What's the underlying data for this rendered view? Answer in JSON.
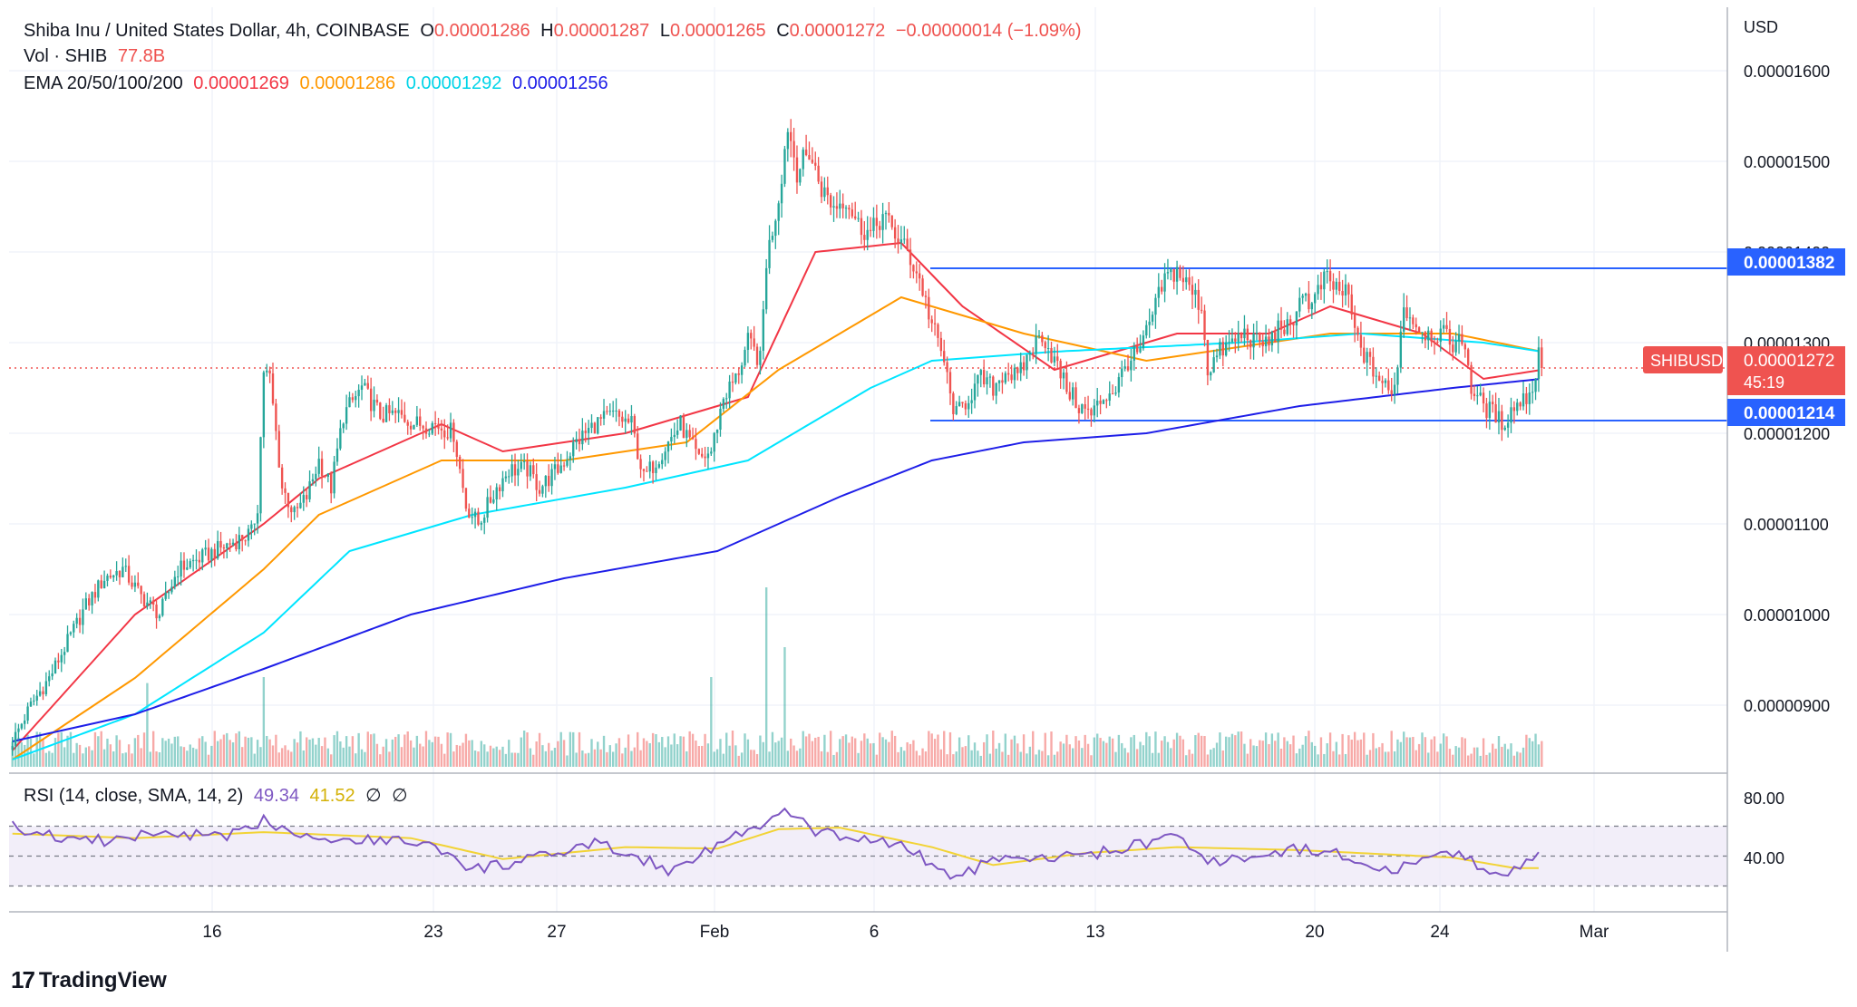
{
  "header": {
    "symbol": "Shiba Inu / United States Dollar, 4h, COINBASE",
    "open_label": "O",
    "open": "0.00001286",
    "high_label": "H",
    "high": "0.00001287",
    "low_label": "L",
    "low": "0.00001265",
    "close_label": "C",
    "close": "0.00001272",
    "change": "−0.00000014 (−1.09%)",
    "volume_label": "Vol · SHIB",
    "volume": "77.8B",
    "ema_label": "EMA 20/50/100/200",
    "ema20": "0.00001269",
    "ema50": "0.00001286",
    "ema100": "0.00001292",
    "ema200": "0.00001256"
  },
  "price_axis": {
    "currency": "USD",
    "ticks": [
      "0.00001600",
      "0.00001500",
      "0.00001400",
      "0.00001300",
      "0.00001200",
      "0.00001100",
      "0.00001000",
      "0.00000900"
    ],
    "resistance_label": "0.00001382",
    "support_label": "0.00001214",
    "ticker_badge": "SHIBUSD",
    "last_price_label": "0.00001272",
    "countdown": "45:19"
  },
  "rsi": {
    "label": "RSI (14, close, SMA, 14, 2)",
    "value": "49.34",
    "sma_value": "41.52",
    "empty_1": "∅",
    "empty_2": "∅",
    "ticks": [
      "80.00",
      "40.00"
    ]
  },
  "time_axis": {
    "ticks": [
      "16",
      "23",
      "27",
      "Feb",
      "6",
      "13",
      "20",
      "24",
      "Mar"
    ]
  },
  "branding": {
    "logo_mark": "17",
    "logo_text": "TradingView"
  },
  "colors": {
    "up": "#26a69a",
    "down": "#ef5350",
    "ema20": "#f23645",
    "ema50": "#ff9800",
    "ema100": "#00e5ff",
    "ema200": "#1e1ee8",
    "level": "#2962ff",
    "rsi": "#7e57c2",
    "rsi_sma": "#f2d335",
    "rsi_band": "#ede7f6"
  },
  "chart_data": {
    "type": "candlestick",
    "title": "Shiba Inu / United States Dollar, 4h, COINBASE",
    "ylabel": "USD",
    "ylim": [
      8.3e-06,
      1.66e-05
    ],
    "x_ticks": [
      "16",
      "23",
      "27",
      "Feb",
      "6",
      "13",
      "20",
      "24",
      "Mar"
    ],
    "horizontal_levels": [
      {
        "value": 1.382e-05,
        "label": "0.00001382"
      },
      {
        "value": 1.214e-05,
        "label": "0.00001214"
      }
    ],
    "last_price": 1.272e-05,
    "candle_close_anchors": [
      [
        0,
        8.6e-06
      ],
      [
        6,
        9e-06
      ],
      [
        12,
        9.3e-06
      ],
      [
        18,
        9.7e-06
      ],
      [
        24,
        1.01e-05
      ],
      [
        30,
        1.04e-05
      ],
      [
        36,
        1.05e-05
      ],
      [
        42,
        1.02e-05
      ],
      [
        48,
        1e-05
      ],
      [
        54,
        1.05e-05
      ],
      [
        60,
        1.06e-05
      ],
      [
        66,
        1.07e-05
      ],
      [
        72,
        1.08e-05
      ],
      [
        78,
        1.09e-05
      ],
      [
        80,
        1.12e-05
      ],
      [
        82,
        1.27e-05
      ],
      [
        84,
        1.26e-05
      ],
      [
        88,
        1.14e-05
      ],
      [
        92,
        1.11e-05
      ],
      [
        96,
        1.13e-05
      ],
      [
        100,
        1.17e-05
      ],
      [
        104,
        1.14e-05
      ],
      [
        108,
        1.22e-05
      ],
      [
        114,
        1.25e-05
      ],
      [
        120,
        1.22e-05
      ],
      [
        126,
        1.22e-05
      ],
      [
        132,
        1.21e-05
      ],
      [
        138,
        1.21e-05
      ],
      [
        144,
        1.2e-05
      ],
      [
        148,
        1.12e-05
      ],
      [
        152,
        1.1e-05
      ],
      [
        158,
        1.14e-05
      ],
      [
        162,
        1.16e-05
      ],
      [
        168,
        1.16e-05
      ],
      [
        172,
        1.14e-05
      ],
      [
        178,
        1.16e-05
      ],
      [
        184,
        1.19e-05
      ],
      [
        190,
        1.21e-05
      ],
      [
        196,
        1.22e-05
      ],
      [
        202,
        1.21e-05
      ],
      [
        206,
        1.15e-05
      ],
      [
        210,
        1.17e-05
      ],
      [
        214,
        1.19e-05
      ],
      [
        218,
        1.21e-05
      ],
      [
        224,
        1.17e-05
      ],
      [
        228,
        1.18e-05
      ],
      [
        232,
        1.24e-05
      ],
      [
        236,
        1.26e-05
      ],
      [
        240,
        1.3e-05
      ],
      [
        244,
        1.28e-05
      ],
      [
        246,
        1.39e-05
      ],
      [
        250,
        1.46e-05
      ],
      [
        253,
        1.54e-05
      ],
      [
        256,
        1.49e-05
      ],
      [
        260,
        1.51e-05
      ],
      [
        264,
        1.47e-05
      ],
      [
        268,
        1.45e-05
      ],
      [
        272,
        1.46e-05
      ],
      [
        276,
        1.43e-05
      ],
      [
        280,
        1.42e-05
      ],
      [
        284,
        1.44e-05
      ],
      [
        288,
        1.42e-05
      ],
      [
        292,
        1.4e-05
      ],
      [
        296,
        1.37e-05
      ],
      [
        300,
        1.32e-05
      ],
      [
        304,
        1.28e-05
      ],
      [
        306,
        1.24e-05
      ],
      [
        308,
        1.22e-05
      ],
      [
        312,
        1.24e-05
      ],
      [
        316,
        1.26e-05
      ],
      [
        320,
        1.25e-05
      ],
      [
        324,
        1.27e-05
      ],
      [
        328,
        1.26e-05
      ],
      [
        332,
        1.29e-05
      ],
      [
        336,
        1.31e-05
      ],
      [
        340,
        1.28e-05
      ],
      [
        344,
        1.25e-05
      ],
      [
        348,
        1.23e-05
      ],
      [
        352,
        1.22e-05
      ],
      [
        356,
        1.24e-05
      ],
      [
        360,
        1.25e-05
      ],
      [
        364,
        1.28e-05
      ],
      [
        368,
        1.29e-05
      ],
      [
        372,
        1.33e-05
      ],
      [
        376,
        1.37e-05
      ],
      [
        380,
        1.38e-05
      ],
      [
        384,
        1.36e-05
      ],
      [
        388,
        1.34e-05
      ],
      [
        390,
        1.27e-05
      ],
      [
        394,
        1.29e-05
      ],
      [
        398,
        1.3e-05
      ],
      [
        402,
        1.31e-05
      ],
      [
        406,
        1.3e-05
      ],
      [
        410,
        1.3e-05
      ],
      [
        414,
        1.32e-05
      ],
      [
        418,
        1.31e-05
      ],
      [
        420,
        1.36e-05
      ],
      [
        424,
        1.34e-05
      ],
      [
        428,
        1.37e-05
      ],
      [
        432,
        1.36e-05
      ],
      [
        436,
        1.35e-05
      ],
      [
        438,
        1.31e-05
      ],
      [
        442,
        1.28e-05
      ],
      [
        446,
        1.26e-05
      ],
      [
        450,
        1.24e-05
      ],
      [
        452,
        1.28e-05
      ],
      [
        454,
        1.34e-05
      ],
      [
        458,
        1.32e-05
      ],
      [
        462,
        1.31e-05
      ],
      [
        466,
        1.31e-05
      ],
      [
        470,
        1.3e-05
      ],
      [
        474,
        1.3e-05
      ],
      [
        476,
        1.25e-05
      ],
      [
        480,
        1.23e-05
      ],
      [
        484,
        1.22e-05
      ],
      [
        486,
        1.21e-05
      ],
      [
        490,
        1.23e-05
      ],
      [
        494,
        1.24e-05
      ],
      [
        497,
        1.26e-05
      ],
      [
        498,
        1.29e-05
      ],
      [
        499,
        1.27e-05
      ]
    ],
    "ema_anchors": {
      "ema20": [
        [
          0,
          8.5e-06
        ],
        [
          40,
          1e-05
        ],
        [
          82,
          1.1e-05
        ],
        [
          100,
          1.15e-05
        ],
        [
          140,
          1.21e-05
        ],
        [
          160,
          1.18e-05
        ],
        [
          200,
          1.2e-05
        ],
        [
          240,
          1.24e-05
        ],
        [
          262,
          1.4e-05
        ],
        [
          290,
          1.41e-05
        ],
        [
          310,
          1.34e-05
        ],
        [
          340,
          1.27e-05
        ],
        [
          380,
          1.31e-05
        ],
        [
          410,
          1.31e-05
        ],
        [
          430,
          1.34e-05
        ],
        [
          460,
          1.31e-05
        ],
        [
          480,
          1.26e-05
        ],
        [
          499,
          1.27e-05
        ]
      ],
      "ema50": [
        [
          0,
          8.4e-06
        ],
        [
          40,
          9.3e-06
        ],
        [
          82,
          1.05e-05
        ],
        [
          100,
          1.11e-05
        ],
        [
          140,
          1.17e-05
        ],
        [
          180,
          1.17e-05
        ],
        [
          220,
          1.19e-05
        ],
        [
          250,
          1.27e-05
        ],
        [
          290,
          1.35e-05
        ],
        [
          330,
          1.31e-05
        ],
        [
          370,
          1.28e-05
        ],
        [
          430,
          1.31e-05
        ],
        [
          470,
          1.31e-05
        ],
        [
          499,
          1.29e-05
        ]
      ],
      "ema100": [
        [
          0,
          8.4e-06
        ],
        [
          40,
          8.9e-06
        ],
        [
          82,
          9.8e-06
        ],
        [
          110,
          1.07e-05
        ],
        [
          150,
          1.11e-05
        ],
        [
          200,
          1.14e-05
        ],
        [
          240,
          1.17e-05
        ],
        [
          280,
          1.25e-05
        ],
        [
          300,
          1.28e-05
        ],
        [
          340,
          1.29e-05
        ],
        [
          400,
          1.3e-05
        ],
        [
          440,
          1.31e-05
        ],
        [
          480,
          1.3e-05
        ],
        [
          499,
          1.29e-05
        ]
      ],
      "ema200": [
        [
          0,
          8.6e-06
        ],
        [
          40,
          8.9e-06
        ],
        [
          82,
          9.4e-06
        ],
        [
          130,
          1e-05
        ],
        [
          180,
          1.04e-05
        ],
        [
          230,
          1.07e-05
        ],
        [
          270,
          1.13e-05
        ],
        [
          300,
          1.17e-05
        ],
        [
          330,
          1.19e-05
        ],
        [
          370,
          1.2e-05
        ],
        [
          420,
          1.23e-05
        ],
        [
          470,
          1.25e-05
        ],
        [
          499,
          1.26e-05
        ]
      ]
    },
    "volume_spikes": [
      [
        82,
        0.45
      ],
      [
        246,
        0.9
      ],
      [
        252,
        0.6
      ],
      [
        228,
        0.45
      ],
      [
        44,
        0.42
      ]
    ],
    "rsi_anchors": [
      [
        0,
        70
      ],
      [
        10,
        64
      ],
      [
        30,
        60
      ],
      [
        50,
        66
      ],
      [
        70,
        62
      ],
      [
        82,
        74
      ],
      [
        100,
        62
      ],
      [
        130,
        60
      ],
      [
        140,
        55
      ],
      [
        148,
        40
      ],
      [
        170,
        48
      ],
      [
        190,
        58
      ],
      [
        204,
        50
      ],
      [
        214,
        40
      ],
      [
        230,
        58
      ],
      [
        246,
        72
      ],
      [
        252,
        80
      ],
      [
        262,
        66
      ],
      [
        290,
        58
      ],
      [
        306,
        36
      ],
      [
        320,
        46
      ],
      [
        350,
        50
      ],
      [
        380,
        63
      ],
      [
        390,
        45
      ],
      [
        420,
        55
      ],
      [
        436,
        50
      ],
      [
        450,
        40
      ],
      [
        470,
        52
      ],
      [
        486,
        38
      ],
      [
        499,
        50
      ]
    ],
    "rsi_sma_anchors": [
      [
        0,
        65
      ],
      [
        40,
        62
      ],
      [
        82,
        66
      ],
      [
        130,
        62
      ],
      [
        160,
        48
      ],
      [
        200,
        56
      ],
      [
        230,
        55
      ],
      [
        250,
        68
      ],
      [
        270,
        69
      ],
      [
        300,
        56
      ],
      [
        320,
        44
      ],
      [
        350,
        52
      ],
      [
        380,
        56
      ],
      [
        420,
        54
      ],
      [
        470,
        49
      ],
      [
        490,
        42
      ],
      [
        499,
        42
      ]
    ]
  }
}
